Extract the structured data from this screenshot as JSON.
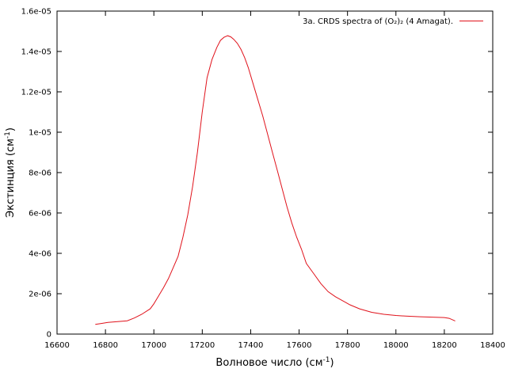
{
  "chart_data": {
    "type": "line",
    "xlabel": {
      "main": "Волновое число (см",
      "sup": "-1",
      "close": ")"
    },
    "ylabel": {
      "main": "Экстинция (см",
      "sup": "-1",
      "close": ")"
    },
    "xlim": [
      16600,
      18400
    ],
    "ylim": [
      0,
      1.6e-05
    ],
    "x_ticks": [
      16600,
      16800,
      17000,
      17200,
      17400,
      17600,
      17800,
      18000,
      18200,
      18400
    ],
    "x_tick_labels": [
      "16600",
      "16800",
      "17000",
      "17200",
      "17400",
      "17600",
      "17800",
      "18000",
      "18200",
      "18400"
    ],
    "y_ticks": [
      0,
      2e-06,
      4e-06,
      6e-06,
      8e-06,
      1e-05,
      1.2e-05,
      1.4e-05,
      1.6e-05
    ],
    "y_tick_labels": [
      "0",
      "2e-06",
      "4e-06",
      "6e-06",
      "8e-06",
      "1e-05",
      "1.2e-05",
      "1.4e-05",
      "1.6e-05"
    ],
    "grid": false,
    "legend_position": "top-right",
    "series": [
      {
        "name": "3a. CRDS spectra of (O₂)₂ (4 Amagat).",
        "color": "#e0121b",
        "x": [
          16758,
          16780,
          16810,
          16850,
          16890,
          16920,
          16950,
          16985,
          17000,
          17020,
          17040,
          17060,
          17080,
          17100,
          17120,
          17140,
          17160,
          17180,
          17200,
          17220,
          17240,
          17260,
          17275,
          17290,
          17305,
          17318,
          17330,
          17345,
          17360,
          17375,
          17390,
          17410,
          17430,
          17450,
          17470,
          17490,
          17510,
          17530,
          17550,
          17570,
          17590,
          17610,
          17630,
          17660,
          17690,
          17720,
          17750,
          17780,
          17810,
          17850,
          17900,
          17950,
          18000,
          18040,
          18100,
          18150,
          18200,
          18220,
          18245
        ],
        "y": [
          4.8e-07,
          5.2e-07,
          5.8e-07,
          6.2e-07,
          6.6e-07,
          8e-07,
          9.8e-07,
          1.25e-06,
          1.5e-06,
          1.9e-06,
          2.3e-06,
          2.75e-06,
          3.3e-06,
          3.85e-06,
          4.8e-06,
          5.9e-06,
          7.3e-06,
          9e-06,
          1.1e-05,
          1.27e-05,
          1.36e-05,
          1.42e-05,
          1.455e-05,
          1.47e-05,
          1.478e-05,
          1.472e-05,
          1.46e-05,
          1.44e-05,
          1.41e-05,
          1.37e-05,
          1.32e-05,
          1.24e-05,
          1.16e-05,
          1.08e-05,
          9.9e-06,
          9e-06,
          8.1e-06,
          7.2e-06,
          6.3e-06,
          5.5e-06,
          4.8e-06,
          4.2e-06,
          3.5e-06,
          3e-06,
          2.5e-06,
          2.1e-06,
          1.85e-06,
          1.65e-06,
          1.45e-06,
          1.25e-06,
          1.08e-06,
          9.8e-07,
          9.2e-07,
          8.9e-07,
          8.6e-07,
          8.4e-07,
          8.2e-07,
          7.8e-07,
          6.5e-07
        ]
      }
    ]
  }
}
